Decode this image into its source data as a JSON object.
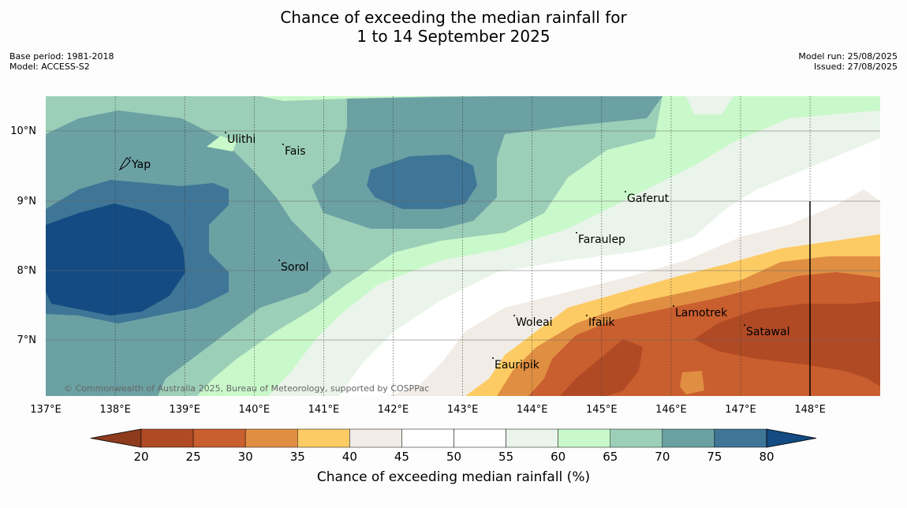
{
  "title": {
    "line1": "Chance of exceeding the median rainfall for",
    "line2": "1 to 14 September 2025"
  },
  "meta": {
    "base_period": "Base period: 1981-2018",
    "model": "Model: ACCESS-S2",
    "model_run": "Model run: 25/08/2025",
    "issued": "Issued: 27/08/2025"
  },
  "copyright": "© Commonwealth of Australia 2025, Bureau of Meteorology, supported by COSPPac",
  "axes": {
    "x_ticks": [
      "137°E",
      "138°E",
      "139°E",
      "140°E",
      "141°E",
      "142°E",
      "143°E",
      "144°E",
      "145°E",
      "146°E",
      "147°E",
      "148°E"
    ],
    "y_ticks": [
      "10°N",
      "9°N",
      "8°N",
      "7°N"
    ]
  },
  "places": [
    {
      "name": "Yap"
    },
    {
      "name": "Ulithi"
    },
    {
      "name": "Fais"
    },
    {
      "name": "Gaferut"
    },
    {
      "name": "Faraulep"
    },
    {
      "name": "Sorol"
    },
    {
      "name": "Woleai"
    },
    {
      "name": "Ifalik"
    },
    {
      "name": "Lamotrek"
    },
    {
      "name": "Satawal"
    },
    {
      "name": "Eauripik"
    }
  ],
  "colorbar": {
    "title": "Chance of exceeding median rainfall (%)",
    "ticks": [
      "20",
      "25",
      "30",
      "35",
      "40",
      "45",
      "50",
      "55",
      "60",
      "65",
      "70",
      "75",
      "80"
    ],
    "colors": [
      "#b04a25",
      "#c95e2e",
      "#e08f42",
      "#fdcb63",
      "#f1ede6",
      "#ffffff",
      "#ffffff",
      "#eaf4ea",
      "#c9f9ca",
      "#9ccfb8",
      "#6ba1a3",
      "#3f7697"
    ],
    "under_color": "#8e3b1d",
    "over_color": "#134b82"
  }
}
